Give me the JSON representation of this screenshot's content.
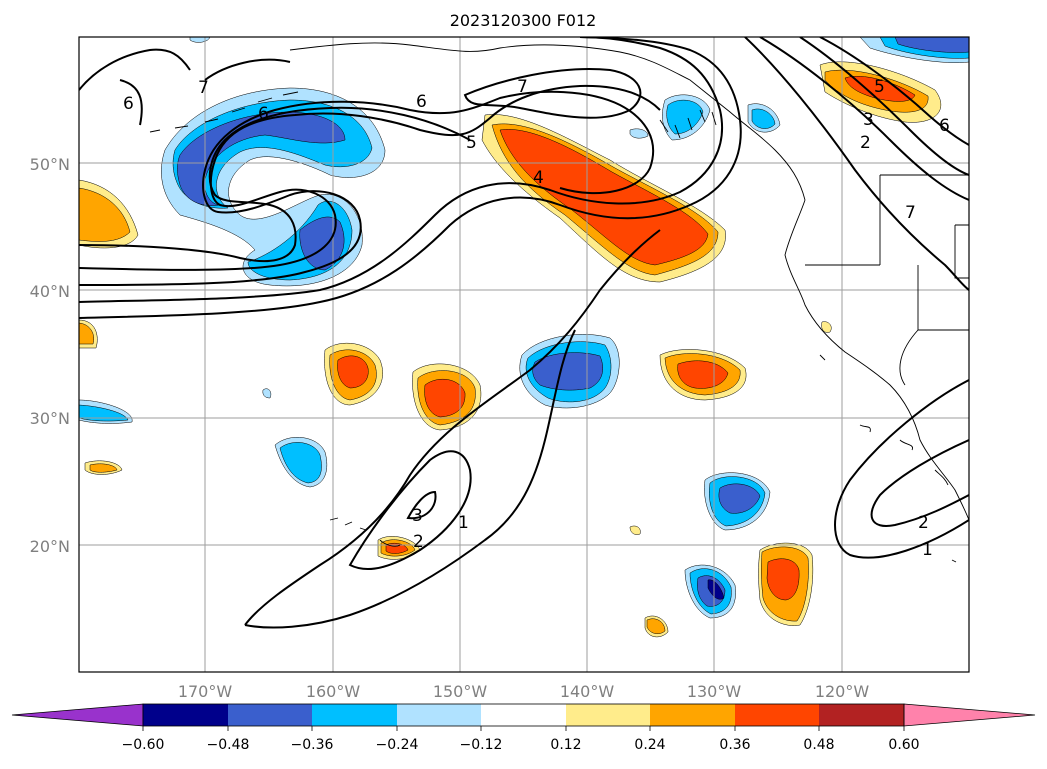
{
  "title": "2023120300 F012",
  "map": {
    "lat_ticks": [
      "50°N",
      "40°N",
      "30°N",
      "20°N"
    ],
    "lon_ticks": [
      "170°W",
      "160°W",
      "150°W",
      "140°W",
      "130°W",
      "120°W"
    ],
    "grid": true,
    "contour_color": "#000000",
    "contour_labels": [
      "6",
      "7",
      "6",
      "5",
      "4",
      "6",
      "7",
      "6",
      "5",
      "3",
      "2",
      "1",
      "7",
      "2",
      "3",
      "2",
      "1"
    ]
  },
  "colorbar": {
    "ticks": [
      "−0.60",
      "−0.48",
      "−0.36",
      "−0.24",
      "−0.12",
      "0.12",
      "0.24",
      "0.36",
      "0.48",
      "0.60"
    ],
    "colors": [
      "#9932cc",
      "#00008b",
      "#3a5fcd",
      "#00bfff",
      "#b0e2ff",
      "#ffffff",
      "#ffec8b",
      "#ffa500",
      "#ff4500",
      "#b22222",
      "#ff82ab"
    ]
  },
  "fill_colors": {
    "neg_strong": "#00008b",
    "neg_mid": "#3a5fcd",
    "neg_weak": "#00bfff",
    "neg_faint": "#b0e2ff",
    "pos_faint": "#ffec8b",
    "pos_weak": "#ffa500",
    "pos_mid": "#ff4500"
  }
}
